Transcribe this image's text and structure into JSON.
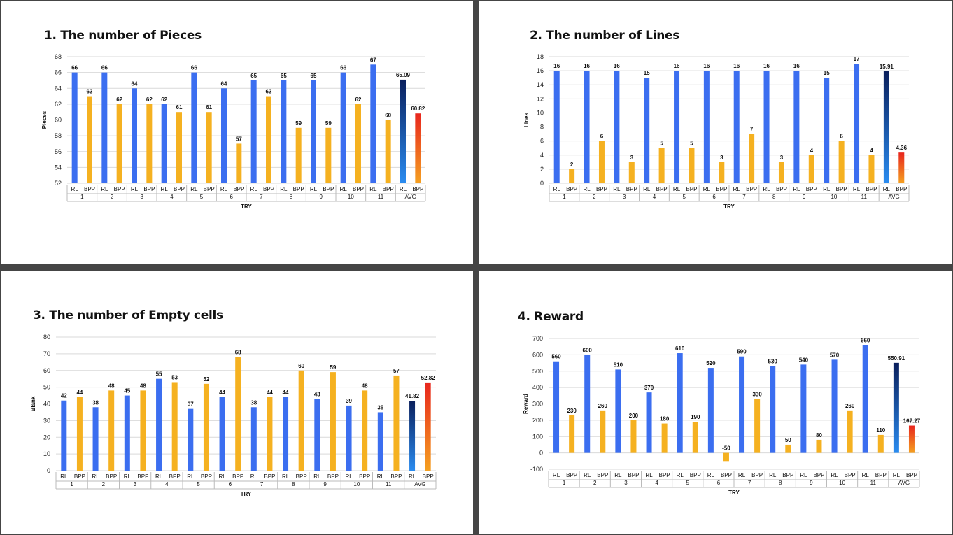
{
  "colors": {
    "rl": "#3b6ef0",
    "bpp": "#f5b120",
    "avg_rl_top": "#0a1f5c",
    "avg_rl_bottom": "#2a8cf0",
    "avg_bpp_top": "#e8261e",
    "avg_bpp_bottom": "#f5a020",
    "grid": "#d9d9d9"
  },
  "chart_data": [
    {
      "type": "bar",
      "title": "1. The number of Pieces",
      "ylabel": "Pieces",
      "xlabel": "TRY",
      "ylim": [
        52,
        68
      ],
      "yticks": [
        52,
        54,
        56,
        58,
        60,
        62,
        64,
        66,
        68
      ],
      "groups": [
        "1",
        "2",
        "3",
        "4",
        "5",
        "6",
        "7",
        "8",
        "9",
        "10",
        "11",
        "AVG"
      ],
      "sub_labels": [
        "RL",
        "BPP"
      ],
      "series": [
        {
          "name": "RL",
          "values": [
            66,
            66,
            64,
            62,
            66,
            64,
            65,
            65,
            65,
            66,
            67,
            65.09
          ]
        },
        {
          "name": "BPP",
          "values": [
            63,
            62,
            62,
            61,
            61,
            57,
            63,
            59,
            59,
            62,
            60,
            60.82
          ]
        }
      ],
      "value_labels": {
        "RL": [
          "66",
          "66",
          "64",
          "62",
          "66",
          "64",
          "65",
          "65",
          "65",
          "66",
          "67",
          "65.09"
        ],
        "BPP": [
          "63",
          "62",
          "62",
          "61",
          "61",
          "57",
          "63",
          "59",
          "59",
          "62",
          "60",
          "60.82"
        ]
      }
    },
    {
      "type": "bar",
      "title": "2. The number of Lines",
      "ylabel": "Lines",
      "xlabel": "TRY",
      "ylim": [
        0,
        18
      ],
      "yticks": [
        0,
        2,
        4,
        6,
        8,
        10,
        12,
        14,
        16,
        18
      ],
      "groups": [
        "1",
        "2",
        "3",
        "4",
        "5",
        "6",
        "7",
        "8",
        "9",
        "10",
        "11",
        "AVG"
      ],
      "sub_labels": [
        "RL",
        "BPP"
      ],
      "series": [
        {
          "name": "RL",
          "values": [
            16,
            16,
            16,
            15,
            16,
            16,
            16,
            16,
            16,
            15,
            17,
            15.91
          ]
        },
        {
          "name": "BPP",
          "values": [
            2,
            6,
            3,
            5,
            5,
            3,
            7,
            3,
            4,
            6,
            4,
            4.36
          ]
        }
      ],
      "value_labels": {
        "RL": [
          "16",
          "16",
          "16",
          "15",
          "16",
          "16",
          "16",
          "16",
          "16",
          "15",
          "17",
          "15.91"
        ],
        "BPP": [
          "2",
          "6",
          "3",
          "5",
          "5",
          "3",
          "7",
          "3",
          "4",
          "6",
          "4",
          "4.36"
        ]
      }
    },
    {
      "type": "bar",
      "title": "3. The number of Empty cells",
      "ylabel": "Blank",
      "xlabel": "TRY",
      "ylim": [
        0,
        80
      ],
      "yticks": [
        0,
        10,
        20,
        30,
        40,
        50,
        60,
        70,
        80
      ],
      "groups": [
        "1",
        "2",
        "3",
        "4",
        "5",
        "6",
        "7",
        "8",
        "9",
        "10",
        "11",
        "AVG"
      ],
      "sub_labels": [
        "RL",
        "BPP"
      ],
      "series": [
        {
          "name": "RL",
          "values": [
            42,
            38,
            45,
            55,
            37,
            44,
            38,
            44,
            43,
            39,
            35,
            41.82
          ]
        },
        {
          "name": "BPP",
          "values": [
            44,
            48,
            48,
            53,
            52,
            68,
            44,
            60,
            59,
            48,
            57,
            52.82
          ]
        }
      ],
      "value_labels": {
        "RL": [
          "42",
          "38",
          "45",
          "55",
          "37",
          "44",
          "38",
          "44",
          "43",
          "39",
          "35",
          "41.82"
        ],
        "BPP": [
          "44",
          "48",
          "48",
          "53",
          "52",
          "68",
          "44",
          "60",
          "59",
          "48",
          "57",
          "52.82"
        ]
      }
    },
    {
      "type": "bar",
      "title": "4. Reward",
      "ylabel": "Reward",
      "xlabel": "TRY",
      "ylim": [
        -100,
        700
      ],
      "yticks": [
        -100,
        0,
        100,
        200,
        300,
        400,
        500,
        600,
        700
      ],
      "groups": [
        "1",
        "2",
        "3",
        "4",
        "5",
        "6",
        "7",
        "8",
        "9",
        "10",
        "11",
        "AVG"
      ],
      "sub_labels": [
        "RL",
        "BPP"
      ],
      "series": [
        {
          "name": "RL",
          "values": [
            560,
            600,
            510,
            370,
            610,
            520,
            590,
            530,
            540,
            570,
            660,
            550.91
          ]
        },
        {
          "name": "BPP",
          "values": [
            230,
            260,
            200,
            180,
            190,
            -50,
            330,
            50,
            80,
            260,
            110,
            167.27
          ]
        }
      ],
      "value_labels": {
        "RL": [
          "560",
          "600",
          "510",
          "370",
          "610",
          "520",
          "590",
          "530",
          "540",
          "570",
          "660",
          "550.91"
        ],
        "BPP": [
          "230",
          "260",
          "200",
          "180",
          "190",
          "-50",
          "330",
          "50",
          "80",
          "260",
          "110",
          "167.27"
        ]
      }
    }
  ]
}
